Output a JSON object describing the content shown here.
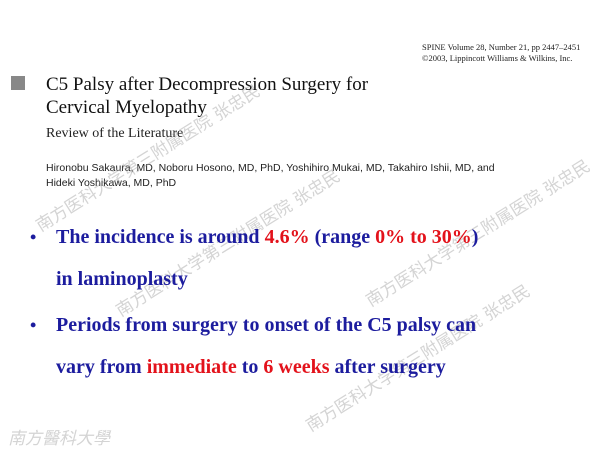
{
  "header": {
    "journal": "SPINE Volume 28, Number 21, pp 2447–2451",
    "copyright": "©2003, Lippincott Williams & Wilkins, Inc."
  },
  "paper": {
    "title_lines": [
      "C5 Palsy after Decompression Surgery for",
      "Cervical Myelopathy"
    ],
    "subtitle": "Review of the Literature",
    "author_lines": [
      "Hironobu Sakaura, MD, Noboru Hosono, MD, PhD, Yoshihiro Mukai, MD, Takahiro Ishii, MD, and",
      "Hideki Yoshikawa, MD, PhD"
    ]
  },
  "bullets": [
    {
      "lines": [
        [
          {
            "text": "The incidence is around ",
            "color": "#1c1c9e"
          },
          {
            "text": "4.6%",
            "color": "#e3121b"
          },
          {
            "text": " (range ",
            "color": "#1c1c9e"
          },
          {
            "text": "0% to 30%",
            "color": "#e3121b"
          },
          {
            "text": ")",
            "color": "#1c1c9e"
          }
        ],
        [
          {
            "text": "in laminoplasty",
            "color": "#1c1c9e"
          }
        ]
      ]
    },
    {
      "lines": [
        [
          {
            "text": "Periods from surgery to onset of the C5 palsy can",
            "color": "#1c1c9e"
          }
        ],
        [
          {
            "text": "vary from ",
            "color": "#1c1c9e"
          },
          {
            "text": "immediate",
            "color": "#e3121b"
          },
          {
            "text": " to ",
            "color": "#1c1c9e"
          },
          {
            "text": "6 weeks",
            "color": "#e3121b"
          },
          {
            "text": " after surgery",
            "color": "#1c1c9e"
          }
        ]
      ]
    }
  ],
  "watermark": "南方医科大学第三附属医院 张忠民",
  "logo": "南方醫科大學"
}
